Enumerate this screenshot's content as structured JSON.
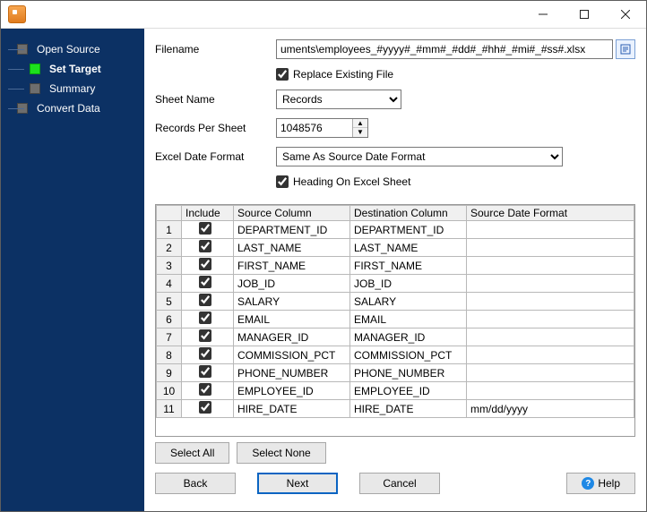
{
  "window": {
    "title": ""
  },
  "nav": {
    "items": [
      {
        "label": "Open Source",
        "active": false,
        "indent": 0
      },
      {
        "label": "Set Target",
        "active": true,
        "indent": 1
      },
      {
        "label": "Summary",
        "active": false,
        "indent": 1
      },
      {
        "label": "Convert Data",
        "active": false,
        "indent": 0
      }
    ]
  },
  "form": {
    "filename_label": "Filename",
    "filename_value": "uments\\employees_#yyyy#_#mm#_#dd#_#hh#_#mi#_#ss#.xlsx",
    "replace_existing_label": "Replace Existing File",
    "replace_existing_checked": true,
    "sheet_name_label": "Sheet Name",
    "sheet_name_value": "Records",
    "records_per_sheet_label": "Records Per Sheet",
    "records_per_sheet_value": "1048576",
    "excel_date_format_label": "Excel Date Format",
    "excel_date_format_value": "Same As Source Date Format",
    "heading_on_excel_label": "Heading On Excel Sheet",
    "heading_on_excel_checked": true
  },
  "grid": {
    "headers": {
      "rownum": "",
      "include": "Include",
      "source": "Source Column",
      "destination": "Destination Column",
      "source_date_format": "Source Date Format"
    },
    "rows": [
      {
        "n": "1",
        "inc": true,
        "src": "DEPARTMENT_ID",
        "dst": "DEPARTMENT_ID",
        "fmt": ""
      },
      {
        "n": "2",
        "inc": true,
        "src": "LAST_NAME",
        "dst": "LAST_NAME",
        "fmt": ""
      },
      {
        "n": "3",
        "inc": true,
        "src": "FIRST_NAME",
        "dst": "FIRST_NAME",
        "fmt": ""
      },
      {
        "n": "4",
        "inc": true,
        "src": "JOB_ID",
        "dst": "JOB_ID",
        "fmt": ""
      },
      {
        "n": "5",
        "inc": true,
        "src": "SALARY",
        "dst": "SALARY",
        "fmt": ""
      },
      {
        "n": "6",
        "inc": true,
        "src": "EMAIL",
        "dst": "EMAIL",
        "fmt": ""
      },
      {
        "n": "7",
        "inc": true,
        "src": "MANAGER_ID",
        "dst": "MANAGER_ID",
        "fmt": ""
      },
      {
        "n": "8",
        "inc": true,
        "src": "COMMISSION_PCT",
        "dst": "COMMISSION_PCT",
        "fmt": ""
      },
      {
        "n": "9",
        "inc": true,
        "src": "PHONE_NUMBER",
        "dst": "PHONE_NUMBER",
        "fmt": ""
      },
      {
        "n": "10",
        "inc": true,
        "src": "EMPLOYEE_ID",
        "dst": "EMPLOYEE_ID",
        "fmt": ""
      },
      {
        "n": "11",
        "inc": true,
        "src": "HIRE_DATE",
        "dst": "HIRE_DATE",
        "fmt": "mm/dd/yyyy"
      }
    ]
  },
  "buttons": {
    "select_all": "Select All",
    "select_none": "Select None",
    "back": "Back",
    "next": "Next",
    "cancel": "Cancel",
    "help": "Help"
  }
}
